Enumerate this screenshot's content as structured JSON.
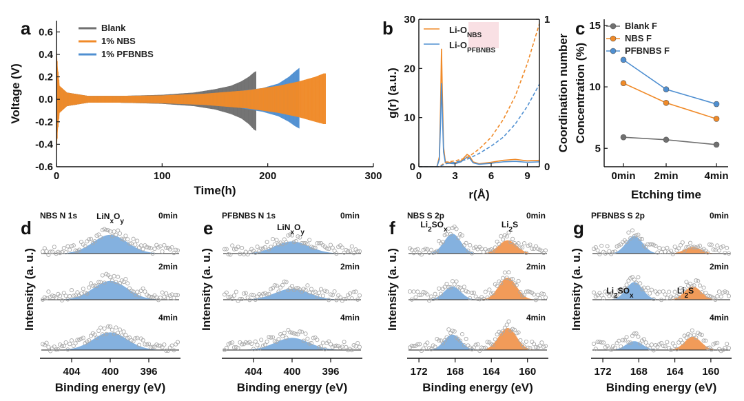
{
  "colors": {
    "blank": "#707070",
    "nbs": "#f08a28",
    "pfbnbs": "#4f8fd1",
    "peak_blue": "#6fa3d9",
    "peak_orange": "#ef8a3c",
    "point": "#a9a9a9",
    "axis": "#111111"
  },
  "chart_data": [
    {
      "id": "a",
      "panel_label": "a",
      "type": "line",
      "title": "",
      "xlabel": "Time(h)",
      "ylabel": "Voltage (V)",
      "xlim": [
        0,
        300
      ],
      "ylim": [
        -0.6,
        0.7
      ],
      "xticks": [
        0,
        100,
        200,
        300
      ],
      "yticks": [
        -0.6,
        -0.4,
        -0.2,
        0.0,
        0.2,
        0.4,
        0.6
      ],
      "xtick_labels": [
        "0",
        "100",
        "200",
        "300"
      ],
      "ytick_labels": [
        "-0.6",
        "-0.4",
        "-0.2",
        "0.0",
        "0.2",
        "0.4",
        "0.6"
      ],
      "legend_position": "top-left",
      "series": [
        {
          "name": "Blank",
          "key": "blank",
          "x": [
            0,
            2,
            10,
            30,
            60,
            100,
            130,
            150,
            165,
            175,
            182,
            187,
            189
          ],
          "upper": [
            0.3,
            0.12,
            0.06,
            0.03,
            0.03,
            0.04,
            0.06,
            0.09,
            0.12,
            0.16,
            0.2,
            0.24,
            0.25
          ],
          "lower": [
            -0.3,
            -0.12,
            -0.06,
            -0.03,
            -0.03,
            -0.04,
            -0.06,
            -0.09,
            -0.13,
            -0.17,
            -0.22,
            -0.27,
            -0.28
          ]
        },
        {
          "name": "1% PFBNBS",
          "key": "pfbnbs",
          "x": [
            0,
            2,
            10,
            30,
            60,
            100,
            140,
            170,
            195,
            210,
            220,
            226,
            230
          ],
          "upper": [
            0.35,
            0.12,
            0.06,
            0.03,
            0.03,
            0.035,
            0.05,
            0.07,
            0.1,
            0.14,
            0.2,
            0.25,
            0.28
          ],
          "lower": [
            -0.35,
            -0.12,
            -0.06,
            -0.03,
            -0.03,
            -0.035,
            -0.05,
            -0.07,
            -0.11,
            -0.15,
            -0.2,
            -0.24,
            -0.26
          ]
        },
        {
          "name": "1% NBS",
          "key": "nbs",
          "x": [
            0,
            1,
            3,
            10,
            30,
            60,
            100,
            140,
            180,
            210,
            230,
            245,
            253,
            255
          ],
          "upper": [
            0.5,
            0.3,
            0.12,
            0.06,
            0.03,
            0.03,
            0.035,
            0.05,
            0.08,
            0.12,
            0.16,
            0.2,
            0.23,
            0.23
          ],
          "lower": [
            -0.55,
            -0.3,
            -0.12,
            -0.06,
            -0.03,
            -0.03,
            -0.035,
            -0.05,
            -0.08,
            -0.12,
            -0.16,
            -0.2,
            -0.22,
            -0.22
          ]
        }
      ]
    },
    {
      "id": "b",
      "panel_label": "b",
      "type": "line",
      "title": "",
      "xlabel": "r(Å)",
      "ylabel": "g(r) (a.u.)",
      "y2label": "Coordination number",
      "xlim": [
        0,
        10
      ],
      "ylim": [
        0,
        30
      ],
      "y2lim": [
        0,
        1
      ],
      "xticks": [
        0,
        3,
        6,
        9
      ],
      "yticks": [
        0,
        10,
        20,
        30
      ],
      "y2ticks": [
        0,
        1
      ],
      "xtick_labels": [
        "0",
        "3",
        "6",
        "9"
      ],
      "ytick_labels": [
        "0",
        "10",
        "20",
        "30"
      ],
      "y2tick_labels": [
        "0",
        "1"
      ],
      "legend_position": "top-right",
      "legend": [
        {
          "key": "nbs",
          "base": "Li-O",
          "sub": "NBS"
        },
        {
          "key": "pfbnbs",
          "base": "Li-O",
          "sub": "PFBNBS"
        }
      ],
      "series": [
        {
          "name": "Li-O NBS g(r)",
          "key": "nbs",
          "style": "solid",
          "x": [
            0,
            1.5,
            1.7,
            1.8,
            1.88,
            1.95,
            2.05,
            2.2,
            2.5,
            3.0,
            3.5,
            4.0,
            4.2,
            4.5,
            5.0,
            6.0,
            7.0,
            8.0,
            9.0,
            10.0
          ],
          "y": [
            0,
            0,
            2,
            12,
            24,
            15,
            4,
            1.0,
            0.9,
            0.8,
            1.2,
            2.5,
            2.2,
            1.0,
            0.6,
            0.9,
            1.3,
            1.5,
            1.2,
            1.3
          ]
        },
        {
          "name": "Li-O PFBNBS g(r)",
          "key": "pfbnbs",
          "style": "solid",
          "x": [
            0,
            1.5,
            1.7,
            1.8,
            1.88,
            1.95,
            2.05,
            2.2,
            2.5,
            3.0,
            3.5,
            4.0,
            4.2,
            4.5,
            5.0,
            6.0,
            7.0,
            8.0,
            9.0,
            10.0
          ],
          "y": [
            0,
            0,
            1.5,
            9,
            17,
            11,
            3,
            0.8,
            0.7,
            0.6,
            1.0,
            2.0,
            1.8,
            0.8,
            0.5,
            0.7,
            1.0,
            1.1,
            0.9,
            1.0
          ]
        },
        {
          "name": "Li-O NBS coordination",
          "key": "nbs",
          "style": "dashed",
          "axis": "right",
          "x": [
            0,
            1.7,
            2.2,
            3.0,
            4.0,
            4.5,
            5.0,
            6.0,
            7.0,
            8.0,
            9.0,
            10.0
          ],
          "y": [
            0,
            0,
            0.03,
            0.04,
            0.06,
            0.09,
            0.12,
            0.2,
            0.32,
            0.48,
            0.7,
            0.97
          ]
        },
        {
          "name": "Li-O PFBNBS coordination",
          "key": "pfbnbs",
          "style": "dashed",
          "axis": "right",
          "x": [
            0,
            1.7,
            2.2,
            3.0,
            4.0,
            4.5,
            5.0,
            6.0,
            7.0,
            8.0,
            9.0,
            10.0
          ],
          "y": [
            0,
            0,
            0.02,
            0.03,
            0.05,
            0.07,
            0.09,
            0.14,
            0.2,
            0.29,
            0.41,
            0.56
          ]
        }
      ]
    },
    {
      "id": "c",
      "panel_label": "c",
      "type": "line",
      "title": "",
      "xlabel": "Etching time",
      "ylabel": "Concentration (%)",
      "categories": [
        "0min",
        "2min",
        "4min"
      ],
      "ylim": [
        3.5,
        15.5
      ],
      "yticks": [
        5,
        10,
        15
      ],
      "ytick_labels": [
        "5",
        "10",
        "15"
      ],
      "legend_position": "top-right",
      "series": [
        {
          "name": "Blank F",
          "key": "blank",
          "values": [
            5.9,
            5.7,
            5.3
          ]
        },
        {
          "name": "NBS F",
          "key": "nbs",
          "values": [
            10.3,
            8.7,
            7.4
          ]
        },
        {
          "name": "PFBNBS F",
          "key": "pfbnbs",
          "values": [
            12.2,
            9.8,
            8.6
          ]
        }
      ]
    },
    {
      "id": "d",
      "panel_label": "d",
      "type": "scatter",
      "title": "NBS N 1s",
      "xlabel": "Binding energy (eV)",
      "ylabel": "Intensity (a. u.)",
      "xlim": [
        407,
        393
      ],
      "xticks": [
        404,
        400,
        396
      ],
      "xtick_labels": [
        "404",
        "400",
        "396"
      ],
      "series": [
        {
          "name": "0min",
          "peaks": [
            {
              "key": "peak_blue",
              "center": 400,
              "width": 2.5,
              "amp": 0.85
            }
          ]
        },
        {
          "name": "2min",
          "peaks": [
            {
              "key": "peak_blue",
              "center": 400,
              "width": 2.5,
              "amp": 0.85
            }
          ]
        },
        {
          "name": "4min",
          "peaks": [
            {
              "key": "peak_blue",
              "center": 400,
              "width": 2.5,
              "amp": 0.8
            }
          ]
        }
      ],
      "annotations": [
        {
          "base": "LiN",
          "sub1": "x",
          "mid": "O",
          "sub2": "y",
          "key": "pfbnbs"
        }
      ]
    },
    {
      "id": "e",
      "panel_label": "e",
      "type": "scatter",
      "title": "PFBNBS N 1s",
      "xlabel": "Binding energy (eV)",
      "ylabel": "Intensity (a. u.)",
      "xlim": [
        407,
        393
      ],
      "xticks": [
        404,
        400,
        396
      ],
      "xtick_labels": [
        "404",
        "400",
        "396"
      ],
      "series": [
        {
          "name": "0min",
          "peaks": [
            {
              "key": "peak_blue",
              "center": 400,
              "width": 2.5,
              "amp": 0.55
            }
          ]
        },
        {
          "name": "2min",
          "peaks": [
            {
              "key": "peak_blue",
              "center": 400,
              "width": 2.5,
              "amp": 0.5
            }
          ]
        },
        {
          "name": "4min",
          "peaks": [
            {
              "key": "peak_blue",
              "center": 400,
              "width": 2.5,
              "amp": 0.55
            }
          ]
        }
      ],
      "annotations": [
        {
          "base": "LiN",
          "sub1": "x",
          "mid": "O",
          "sub2": "y",
          "key": "pfbnbs"
        }
      ]
    },
    {
      "id": "f",
      "panel_label": "f",
      "type": "scatter",
      "title": "NBS S 2p",
      "xlabel": "Binding energy (eV)",
      "ylabel": "Intensity (a. u.)",
      "xlim": [
        173,
        158
      ],
      "xticks": [
        172,
        168,
        164,
        160
      ],
      "xtick_labels": [
        "172",
        "168",
        "164",
        "160"
      ],
      "series": [
        {
          "name": "0min",
          "peaks": [
            {
              "key": "peak_blue",
              "center": 168.3,
              "width": 1.3,
              "amp": 0.9
            },
            {
              "key": "peak_orange",
              "center": 162.2,
              "width": 1.4,
              "amp": 0.6
            }
          ]
        },
        {
          "name": "2min",
          "peaks": [
            {
              "key": "peak_blue",
              "center": 168.3,
              "width": 1.3,
              "amp": 0.6
            },
            {
              "key": "peak_orange",
              "center": 162.2,
              "width": 1.4,
              "amp": 1.0
            }
          ]
        },
        {
          "name": "4min",
          "peaks": [
            {
              "key": "peak_blue",
              "center": 168.3,
              "width": 1.3,
              "amp": 0.7
            },
            {
              "key": "peak_orange",
              "center": 162.2,
              "width": 1.4,
              "amp": 1.0
            }
          ]
        }
      ],
      "annotations": [
        {
          "base": "Li",
          "sub1": "2",
          "mid": "SO",
          "sub2": "x",
          "key": "pfbnbs"
        },
        {
          "base": "Li",
          "sub1": "2",
          "mid": "S",
          "sub2": "",
          "key": "nbs"
        }
      ]
    },
    {
      "id": "g",
      "panel_label": "g",
      "type": "scatter",
      "title": "PFBNBS S 2p",
      "xlabel": "Binding energy (eV)",
      "ylabel": "Intensity (a. u.)",
      "xlim": [
        173,
        158
      ],
      "xticks": [
        172,
        168,
        164,
        160
      ],
      "xtick_labels": [
        "172",
        "168",
        "164",
        "160"
      ],
      "series": [
        {
          "name": "0min",
          "peaks": [
            {
              "key": "peak_blue",
              "center": 168.5,
              "width": 1.3,
              "amp": 0.8
            },
            {
              "key": "peak_orange",
              "center": 162.0,
              "width": 1.3,
              "amp": 0.3
            }
          ]
        },
        {
          "name": "2min",
          "peaks": [
            {
              "key": "peak_blue",
              "center": 168.5,
              "width": 1.3,
              "amp": 0.8
            },
            {
              "key": "peak_orange",
              "center": 162.0,
              "width": 1.3,
              "amp": 0.6
            }
          ]
        },
        {
          "name": "4min",
          "peaks": [
            {
              "key": "peak_blue",
              "center": 168.5,
              "width": 1.3,
              "amp": 0.4
            },
            {
              "key": "peak_orange",
              "center": 162.0,
              "width": 1.3,
              "amp": 0.6
            }
          ]
        }
      ],
      "annotations": [
        {
          "base": "Li",
          "sub1": "2",
          "mid": "SO",
          "sub2": "x",
          "key": "pfbnbs"
        },
        {
          "base": "Li",
          "sub1": "2",
          "mid": "S",
          "sub2": "",
          "key": "nbs"
        }
      ]
    }
  ]
}
